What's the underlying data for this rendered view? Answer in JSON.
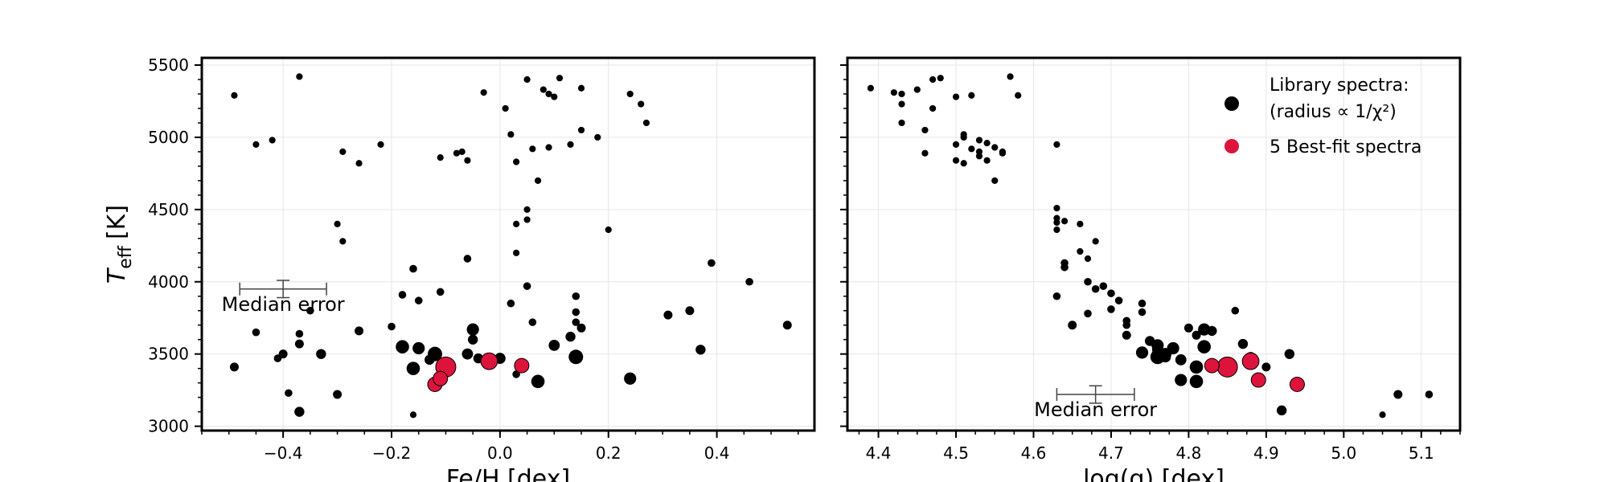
{
  "chart_data": [
    {
      "type": "scatter",
      "xlabel": "Fe/H [dex]",
      "ylabel": "T",
      "ylabel_sub": "eff",
      "ylabel_unit": "[K]",
      "xlim": [
        -0.55,
        0.58
      ],
      "ylim": [
        2970,
        5550
      ],
      "xticks": [
        -0.4,
        -0.2,
        0.0,
        0.2,
        0.4
      ],
      "xtick_labels": [
        "−0.4",
        "−0.2",
        "0.0",
        "0.2",
        "0.4"
      ],
      "yticks": [
        3000,
        3500,
        4000,
        4500,
        5000,
        5500
      ],
      "ytick_labels": [
        "3000",
        "3500",
        "4000",
        "4500",
        "5000",
        "5500"
      ],
      "grid": true,
      "median_error": {
        "label": "Median error",
        "x": -0.4,
        "y": 3950,
        "xerr": 0.08,
        "yerr": 60
      },
      "library": [
        [
          -0.49,
          5290,
          0.3
        ],
        [
          -0.37,
          5420,
          0.3
        ],
        [
          -0.45,
          4950,
          0.3
        ],
        [
          -0.42,
          4980,
          0.3
        ],
        [
          -0.29,
          4900,
          0.3
        ],
        [
          -0.26,
          4820,
          0.3
        ],
        [
          -0.22,
          4950,
          0.3
        ],
        [
          -0.3,
          4400,
          0.3
        ],
        [
          -0.29,
          4280,
          0.3
        ],
        [
          -0.35,
          3800,
          0.4
        ],
        [
          -0.18,
          3910,
          0.4
        ],
        [
          -0.16,
          4090,
          0.4
        ],
        [
          -0.15,
          3870,
          0.4
        ],
        [
          -0.11,
          3930,
          0.4
        ],
        [
          -0.2,
          3690,
          0.4
        ],
        [
          -0.26,
          3660,
          0.5
        ],
        [
          -0.37,
          3640,
          0.4
        ],
        [
          -0.37,
          3570,
          0.5
        ],
        [
          -0.33,
          3500,
          0.6
        ],
        [
          -0.4,
          3500,
          0.5
        ],
        [
          -0.41,
          3470,
          0.4
        ],
        [
          -0.49,
          3410,
          0.5
        ],
        [
          -0.45,
          3650,
          0.4
        ],
        [
          -0.39,
          3230,
          0.4
        ],
        [
          -0.37,
          3100,
          0.6
        ],
        [
          -0.3,
          3220,
          0.5
        ],
        [
          -0.18,
          3550,
          0.9
        ],
        [
          -0.15,
          3540,
          0.8
        ],
        [
          -0.16,
          3400,
          0.9
        ],
        [
          -0.12,
          3500,
          1.0
        ],
        [
          -0.13,
          3460,
          0.6
        ],
        [
          -0.16,
          3080,
          0.3
        ],
        [
          -0.1,
          3380,
          0.8
        ],
        [
          -0.08,
          4890,
          0.3
        ],
        [
          -0.07,
          4900,
          0.3
        ],
        [
          -0.06,
          4840,
          0.3
        ],
        [
          -0.11,
          4860,
          0.3
        ],
        [
          -0.06,
          4160,
          0.4
        ],
        [
          -0.05,
          3670,
          0.8
        ],
        [
          -0.05,
          3600,
          0.6
        ],
        [
          -0.06,
          3500,
          0.7
        ],
        [
          -0.04,
          3470,
          0.6
        ],
        [
          0.0,
          3470,
          0.7
        ],
        [
          -0.03,
          5310,
          0.3
        ],
        [
          0.01,
          5200,
          0.3
        ],
        [
          0.02,
          5020,
          0.3
        ],
        [
          0.03,
          4830,
          0.3
        ],
        [
          0.06,
          4920,
          0.3
        ],
        [
          0.09,
          4930,
          0.3
        ],
        [
          0.07,
          4700,
          0.3
        ],
        [
          0.05,
          4500,
          0.3
        ],
        [
          0.05,
          4430,
          0.3
        ],
        [
          0.03,
          4400,
          0.3
        ],
        [
          0.03,
          4200,
          0.3
        ],
        [
          0.05,
          3970,
          0.4
        ],
        [
          0.02,
          3850,
          0.4
        ],
        [
          0.06,
          3720,
          0.4
        ],
        [
          0.03,
          3360,
          0.4
        ],
        [
          0.07,
          3310,
          0.9
        ],
        [
          0.05,
          5400,
          0.3
        ],
        [
          0.08,
          5330,
          0.3
        ],
        [
          0.1,
          5280,
          0.3
        ],
        [
          0.09,
          5300,
          0.3
        ],
        [
          0.11,
          5410,
          0.3
        ],
        [
          0.15,
          5340,
          0.3
        ],
        [
          0.15,
          5050,
          0.3
        ],
        [
          0.13,
          4950,
          0.3
        ],
        [
          0.18,
          5000,
          0.3
        ],
        [
          0.2,
          4360,
          0.3
        ],
        [
          0.14,
          3900,
          0.4
        ],
        [
          0.14,
          3790,
          0.4
        ],
        [
          0.14,
          3720,
          0.4
        ],
        [
          0.15,
          3680,
          0.5
        ],
        [
          0.13,
          3620,
          0.6
        ],
        [
          0.1,
          3560,
          0.7
        ],
        [
          0.14,
          3480,
          1.0
        ],
        [
          0.24,
          5300,
          0.3
        ],
        [
          0.26,
          5230,
          0.3
        ],
        [
          0.27,
          5100,
          0.3
        ],
        [
          0.31,
          3770,
          0.5
        ],
        [
          0.35,
          3800,
          0.5
        ],
        [
          0.37,
          3530,
          0.6
        ],
        [
          0.39,
          4130,
          0.4
        ],
        [
          0.46,
          4000,
          0.4
        ],
        [
          0.53,
          3700,
          0.5
        ],
        [
          0.24,
          3330,
          0.8
        ]
      ],
      "bestfit": [
        [
          -0.1,
          3410,
          1.5
        ],
        [
          -0.02,
          3450,
          1.2
        ],
        [
          0.04,
          3420,
          1.0
        ],
        [
          -0.12,
          3290,
          1.0
        ],
        [
          -0.11,
          3330,
          1.0
        ]
      ]
    },
    {
      "type": "scatter",
      "xlabel": "log(g) [dex]",
      "xlim": [
        4.36,
        5.15
      ],
      "ylim": [
        2970,
        5550
      ],
      "xticks": [
        4.4,
        4.5,
        4.6,
        4.7,
        4.8,
        4.9,
        5.0,
        5.1
      ],
      "xtick_labels": [
        "4.4",
        "4.5",
        "4.6",
        "4.7",
        "4.8",
        "4.9",
        "5.0",
        "5.1"
      ],
      "yticks": [
        3000,
        3500,
        4000,
        4500,
        5000,
        5500
      ],
      "grid": true,
      "median_error": {
        "label": "Median error",
        "x": 4.68,
        "y": 3220,
        "xerr": 0.05,
        "yerr": 60
      },
      "legend": {
        "placement": "top-right",
        "library_label_line1": "Library spectra:",
        "library_label_line2": "(radius ∝ 1/χ²)",
        "bestfit_label": "5 Best-fit spectra",
        "library_color": "#000000",
        "bestfit_color": "#dc143c"
      },
      "library": [
        [
          4.39,
          5340,
          0.3
        ],
        [
          4.42,
          5310,
          0.3
        ],
        [
          4.43,
          5300,
          0.3
        ],
        [
          4.43,
          5230,
          0.3
        ],
        [
          4.43,
          5100,
          0.3
        ],
        [
          4.45,
          5330,
          0.3
        ],
        [
          4.46,
          5050,
          0.3
        ],
        [
          4.47,
          5400,
          0.3
        ],
        [
          4.48,
          5410,
          0.3
        ],
        [
          4.47,
          5200,
          0.3
        ],
        [
          4.46,
          4890,
          0.3
        ],
        [
          4.5,
          5280,
          0.3
        ],
        [
          4.52,
          5290,
          0.3
        ],
        [
          4.5,
          4950,
          0.3
        ],
        [
          4.51,
          5000,
          0.3
        ],
        [
          4.51,
          5020,
          0.3
        ],
        [
          4.52,
          4920,
          0.3
        ],
        [
          4.53,
          4900,
          0.3
        ],
        [
          4.53,
          4980,
          0.3
        ],
        [
          4.54,
          4960,
          0.3
        ],
        [
          4.55,
          4930,
          0.3
        ],
        [
          4.56,
          4900,
          0.3
        ],
        [
          4.56,
          4890,
          0.3
        ],
        [
          4.5,
          4840,
          0.3
        ],
        [
          4.51,
          4820,
          0.3
        ],
        [
          4.53,
          4870,
          0.3
        ],
        [
          4.54,
          4840,
          0.3
        ],
        [
          4.55,
          4700,
          0.3
        ],
        [
          4.57,
          5420,
          0.3
        ],
        [
          4.58,
          5290,
          0.3
        ],
        [
          4.63,
          4950,
          0.3
        ],
        [
          4.63,
          4510,
          0.3
        ],
        [
          4.63,
          4440,
          0.3
        ],
        [
          4.64,
          4420,
          0.3
        ],
        [
          4.63,
          4360,
          0.3
        ],
        [
          4.63,
          4410,
          0.3
        ],
        [
          4.66,
          4400,
          0.3
        ],
        [
          4.64,
          4130,
          0.4
        ],
        [
          4.64,
          4100,
          0.4
        ],
        [
          4.66,
          4210,
          0.3
        ],
        [
          4.67,
          4160,
          0.3
        ],
        [
          4.68,
          4280,
          0.3
        ],
        [
          4.67,
          4000,
          0.4
        ],
        [
          4.68,
          3950,
          0.4
        ],
        [
          4.69,
          3970,
          0.4
        ],
        [
          4.7,
          3920,
          0.4
        ],
        [
          4.71,
          3870,
          0.4
        ],
        [
          4.7,
          3810,
          0.4
        ],
        [
          4.63,
          3900,
          0.4
        ],
        [
          4.67,
          3780,
          0.4
        ],
        [
          4.65,
          3700,
          0.5
        ],
        [
          4.72,
          3730,
          0.4
        ],
        [
          4.72,
          3700,
          0.4
        ],
        [
          4.72,
          3630,
          0.5
        ],
        [
          4.74,
          3850,
          0.4
        ],
        [
          4.74,
          3790,
          0.4
        ],
        [
          4.74,
          3510,
          0.8
        ],
        [
          4.75,
          3590,
          0.6
        ],
        [
          4.76,
          3560,
          0.8
        ],
        [
          4.76,
          3530,
          0.7
        ],
        [
          4.76,
          3480,
          1.0
        ],
        [
          4.77,
          3500,
          0.8
        ],
        [
          4.78,
          3540,
          0.8
        ],
        [
          4.77,
          3480,
          0.7
        ],
        [
          4.79,
          3460,
          0.7
        ],
        [
          4.8,
          3680,
          0.5
        ],
        [
          4.82,
          3670,
          0.8
        ],
        [
          4.83,
          3660,
          0.6
        ],
        [
          4.81,
          3630,
          0.5
        ],
        [
          4.82,
          3550,
          0.9
        ],
        [
          4.81,
          3410,
          0.9
        ],
        [
          4.81,
          3310,
          0.9
        ],
        [
          4.79,
          3320,
          0.8
        ],
        [
          4.86,
          3800,
          0.4
        ],
        [
          4.87,
          3570,
          0.6
        ],
        [
          4.88,
          3480,
          0.6
        ],
        [
          4.9,
          3410,
          0.5
        ],
        [
          4.93,
          3500,
          0.6
        ],
        [
          4.92,
          3110,
          0.6
        ],
        [
          5.05,
          3080,
          0.3
        ],
        [
          5.07,
          3220,
          0.5
        ],
        [
          5.11,
          3220,
          0.4
        ]
      ],
      "bestfit": [
        [
          4.85,
          3410,
          1.5
        ],
        [
          4.88,
          3450,
          1.2
        ],
        [
          4.83,
          3420,
          1.0
        ],
        [
          4.89,
          3320,
          1.0
        ],
        [
          4.94,
          3290,
          1.0
        ]
      ]
    }
  ]
}
